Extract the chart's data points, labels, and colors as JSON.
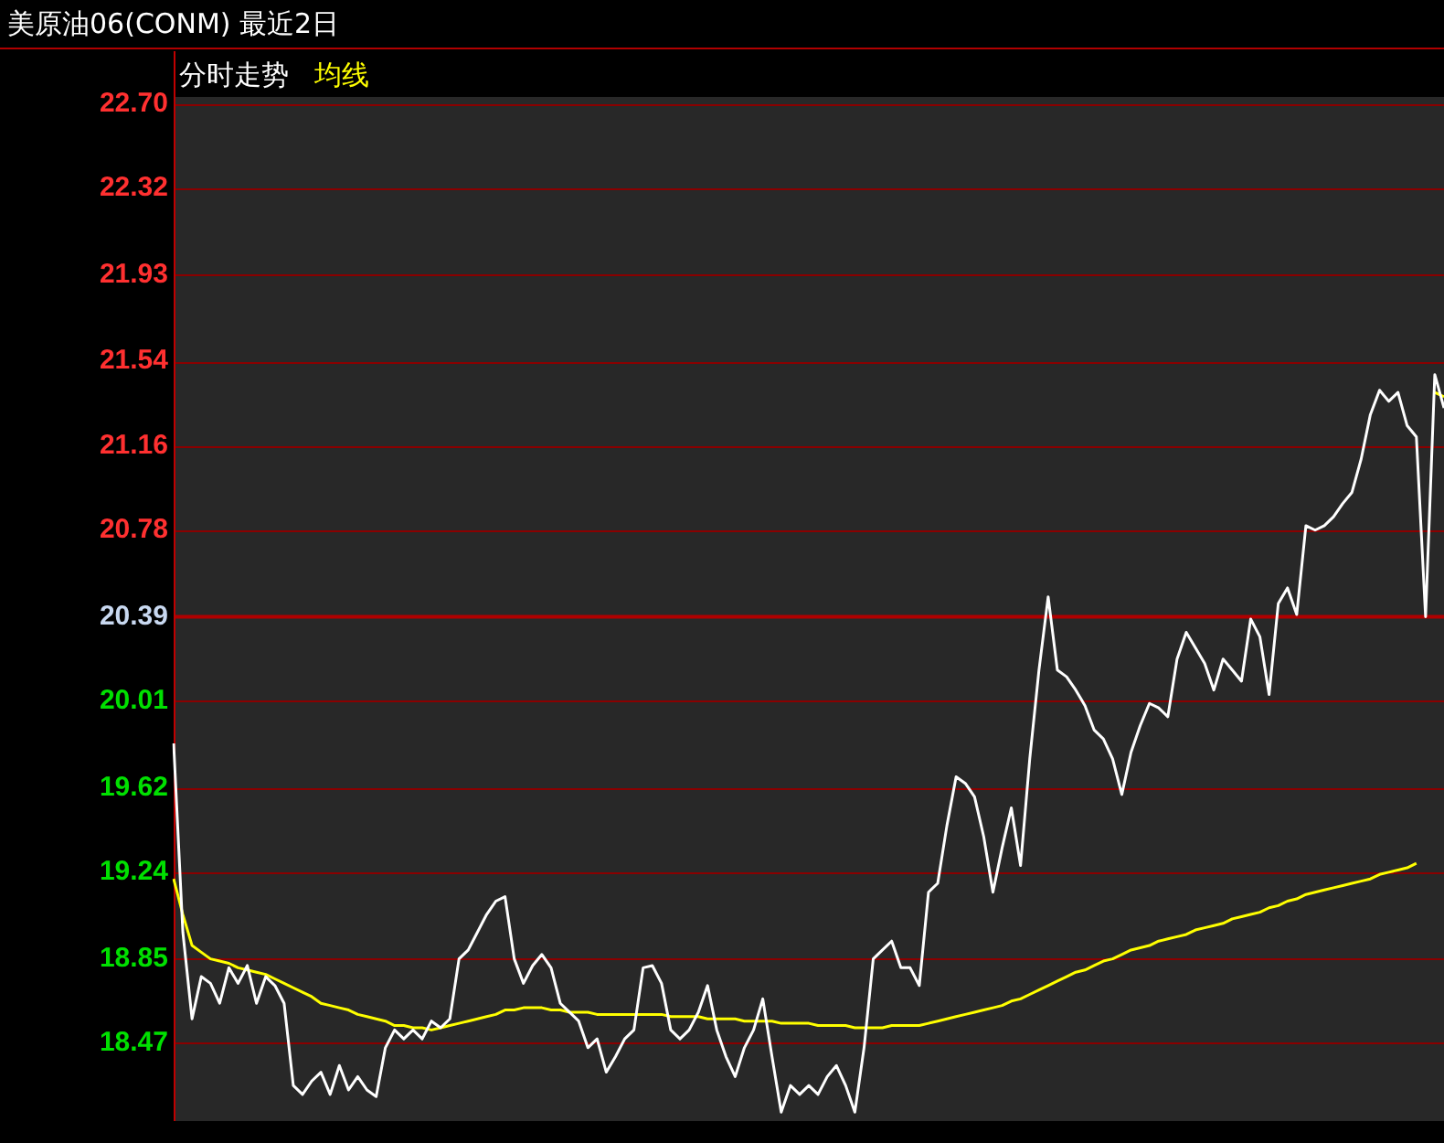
{
  "chart_data": {
    "type": "line",
    "title": "美原油06(CONM) 最近2日",
    "categories": [
      null,
      null,
      null,
      null,
      null,
      null,
      null,
      null,
      null,
      null,
      null,
      null,
      null,
      null,
      null,
      null,
      null,
      null,
      null,
      null,
      null,
      null,
      null,
      null,
      null,
      null,
      null,
      null,
      null,
      null,
      null,
      null,
      null,
      null,
      null,
      null,
      null,
      null,
      null,
      null,
      null,
      null,
      null,
      null,
      null,
      null,
      null,
      null,
      null,
      null,
      null,
      null,
      null,
      null,
      null,
      null,
      null,
      null,
      null,
      null,
      null,
      null,
      null,
      null,
      null,
      null,
      null,
      null,
      null,
      null,
      null,
      null,
      null,
      null,
      null,
      null,
      null,
      null,
      null,
      null,
      null,
      null,
      null,
      null,
      null,
      null,
      null,
      null,
      null,
      null,
      null,
      null,
      null,
      null,
      null,
      null,
      null,
      null,
      null,
      null,
      null,
      null,
      null,
      null,
      null,
      null,
      null,
      null,
      null,
      null,
      null,
      null,
      null,
      null,
      null,
      null,
      null,
      null,
      null,
      null,
      null,
      null,
      null,
      null,
      null,
      null,
      null,
      null,
      null,
      null,
      null,
      null,
      null,
      null,
      null,
      null,
      null,
      null,
      null
    ],
    "series": [
      {
        "name": "分时走势",
        "color": "#ffffff",
        "values": [
          19.82,
          18.97,
          18.58,
          18.77,
          18.74,
          18.65,
          18.81,
          18.74,
          18.82,
          18.65,
          18.77,
          18.73,
          18.65,
          18.28,
          18.24,
          18.3,
          18.34,
          18.24,
          18.37,
          18.26,
          18.32,
          18.26,
          18.23,
          18.45,
          18.53,
          18.49,
          18.53,
          18.49,
          18.57,
          18.54,
          18.58,
          18.85,
          18.89,
          18.97,
          19.05,
          19.11,
          19.13,
          18.85,
          18.74,
          18.82,
          18.87,
          18.81,
          18.65,
          18.61,
          18.57,
          18.45,
          18.49,
          18.34,
          18.41,
          18.49,
          18.53,
          18.81,
          18.82,
          18.74,
          18.53,
          18.49,
          18.53,
          18.61,
          18.73,
          18.53,
          18.41,
          18.32,
          18.45,
          18.53,
          18.67,
          18.41,
          18.16,
          18.28,
          18.24,
          18.28,
          18.24,
          18.32,
          18.37,
          18.28,
          18.16,
          18.45,
          18.85,
          18.89,
          18.93,
          18.81,
          18.81,
          18.73,
          19.15,
          19.19,
          19.45,
          19.67,
          19.64,
          19.58,
          19.4,
          19.15,
          19.35,
          19.53,
          19.27,
          19.75,
          20.15,
          20.48,
          20.15,
          20.12,
          20.06,
          19.99,
          19.88,
          19.84,
          19.75,
          19.59,
          19.78,
          19.9,
          20.0,
          19.98,
          19.94,
          20.2,
          20.32,
          20.25,
          20.18,
          20.06,
          20.2,
          20.15,
          20.1,
          20.38,
          20.3,
          20.04,
          20.45,
          20.52,
          20.4,
          20.8,
          20.78,
          20.8,
          20.84,
          20.9,
          20.95,
          21.1,
          21.3,
          21.41,
          21.36,
          21.4,
          21.25,
          21.2,
          20.39,
          21.48,
          21.33
        ]
      },
      {
        "name": "均线",
        "color": "#ffff00",
        "values": [
          19.21,
          19.05,
          18.91,
          18.88,
          18.85,
          18.84,
          18.83,
          18.81,
          18.8,
          18.79,
          18.78,
          18.76,
          18.74,
          18.72,
          18.7,
          18.68,
          18.65,
          18.64,
          18.63,
          18.62,
          18.6,
          18.59,
          18.58,
          18.57,
          18.55,
          18.55,
          18.54,
          18.54,
          18.53,
          18.54,
          18.55,
          18.56,
          18.57,
          18.58,
          18.59,
          18.6,
          18.62,
          18.62,
          18.63,
          18.63,
          18.63,
          18.62,
          18.62,
          18.61,
          18.61,
          18.61,
          18.6,
          18.6,
          18.6,
          18.6,
          18.6,
          18.6,
          18.6,
          18.6,
          18.59,
          18.59,
          18.59,
          18.59,
          18.58,
          18.58,
          18.58,
          18.58,
          18.57,
          18.57,
          18.57,
          18.57,
          18.56,
          18.56,
          18.56,
          18.56,
          18.55,
          18.55,
          18.55,
          18.55,
          18.54,
          18.54,
          18.54,
          18.54,
          18.55,
          18.55,
          18.55,
          18.55,
          18.56,
          18.57,
          18.58,
          18.59,
          18.6,
          18.61,
          18.62,
          18.63,
          18.64,
          18.66,
          18.67,
          18.69,
          18.71,
          18.73,
          18.75,
          18.77,
          18.79,
          18.8,
          18.82,
          18.84,
          18.85,
          18.87,
          18.89,
          18.9,
          18.91,
          18.93,
          18.94,
          18.95,
          18.96,
          18.98,
          18.99,
          19.0,
          19.01,
          19.03,
          19.04,
          19.05,
          19.06,
          19.08,
          19.09,
          19.11,
          19.12,
          19.14,
          19.15,
          19.16,
          19.17,
          19.18,
          19.19,
          19.2,
          19.21,
          19.23,
          19.24,
          19.25,
          19.26,
          19.28,
          null,
          21.4,
          21.38
        ]
      }
    ],
    "ylim": [
      18.12,
      22.73
    ],
    "yticks": [
      {
        "value": 22.7,
        "label": "22.70"
      },
      {
        "value": 22.32,
        "label": "22.32"
      },
      {
        "value": 21.93,
        "label": "21.93"
      },
      {
        "value": 21.54,
        "label": "21.54"
      },
      {
        "value": 21.16,
        "label": "21.16"
      },
      {
        "value": 20.78,
        "label": "20.78"
      },
      {
        "value": 20.39,
        "label": "20.39"
      },
      {
        "value": 20.01,
        "label": "20.01"
      },
      {
        "value": 19.62,
        "label": "19.62"
      },
      {
        "value": 19.24,
        "label": "19.24"
      },
      {
        "value": 18.85,
        "label": "18.85"
      },
      {
        "value": 18.47,
        "label": "18.47"
      }
    ],
    "ref_lines": [
      {
        "axis": "y",
        "value": 20.39,
        "color": "#b00000"
      }
    ],
    "grid": "y",
    "tick_labels": "y",
    "marker": "none",
    "line_style": "solid"
  }
}
